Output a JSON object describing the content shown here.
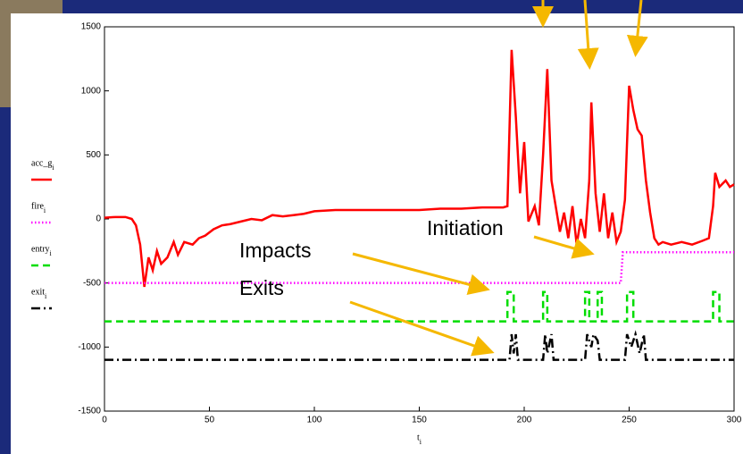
{
  "chart_data": {
    "type": "line",
    "xlabel": "t",
    "xlabel_sub": "i",
    "xlim": [
      0,
      300
    ],
    "xticks": [
      0,
      50,
      100,
      150,
      200,
      250,
      300
    ],
    "ylim": [
      -1500,
      1500
    ],
    "yticks": [
      -1500,
      -1000,
      -500,
      0,
      500,
      1000,
      1500
    ],
    "annotations": [
      "Impacts",
      "Exits",
      "Initiation"
    ],
    "series": [
      {
        "name": "acc_g",
        "name_sub": "i",
        "color": "#ff0000",
        "style": "solid",
        "x": [
          0,
          5,
          10,
          13,
          15,
          17,
          19,
          21,
          23,
          25,
          27,
          30,
          33,
          35,
          38,
          42,
          45,
          48,
          52,
          56,
          60,
          65,
          70,
          75,
          80,
          85,
          90,
          95,
          100,
          110,
          120,
          130,
          140,
          150,
          160,
          170,
          180,
          190,
          192,
          194,
          196,
          198,
          200,
          202,
          205,
          207,
          209,
          211,
          213,
          215,
          217,
          219,
          221,
          223,
          225,
          227,
          229,
          231,
          232,
          234,
          236,
          238,
          240,
          242,
          244,
          246,
          248,
          250,
          252,
          254,
          256,
          258,
          260,
          262,
          264,
          266,
          270,
          275,
          280,
          285,
          288,
          290,
          291,
          293,
          296,
          298,
          300
        ],
        "values": [
          10,
          15,
          15,
          0,
          -50,
          -200,
          -530,
          -300,
          -400,
          -250,
          -350,
          -300,
          -180,
          -280,
          -180,
          -200,
          -150,
          -130,
          -80,
          -50,
          -40,
          -20,
          0,
          -10,
          30,
          20,
          30,
          40,
          60,
          70,
          70,
          70,
          70,
          70,
          80,
          80,
          90,
          90,
          100,
          1320,
          800,
          200,
          600,
          -20,
          100,
          -50,
          500,
          1170,
          300,
          100,
          -100,
          50,
          -150,
          100,
          -200,
          0,
          -150,
          300,
          910,
          200,
          -100,
          200,
          -150,
          50,
          -180,
          -100,
          150,
          1040,
          850,
          700,
          650,
          300,
          50,
          -150,
          -200,
          -180,
          -200,
          -180,
          -200,
          -170,
          -150,
          100,
          360,
          250,
          300,
          250,
          270
        ]
      },
      {
        "name": "fire",
        "name_sub": "i",
        "color": "#ff00ff",
        "style": "dotted",
        "x": [
          0,
          246,
          247,
          300
        ],
        "values": [
          -500,
          -500,
          -260,
          -260
        ]
      },
      {
        "name": "entry",
        "name_sub": "i",
        "color": "#00dd00",
        "style": "dashed",
        "x": [
          0,
          192,
          192,
          195,
          195,
          209,
          209,
          211,
          211,
          229,
          229,
          231,
          231,
          235,
          235,
          237,
          237,
          249,
          249,
          252,
          252,
          290,
          290,
          293,
          293,
          300
        ],
        "values": [
          -800,
          -800,
          -570,
          -570,
          -800,
          -800,
          -570,
          -570,
          -800,
          -800,
          -570,
          -570,
          -800,
          -800,
          -570,
          -570,
          -800,
          -800,
          -570,
          -570,
          -800,
          -800,
          -570,
          -570,
          -800,
          -800
        ]
      },
      {
        "name": "exit",
        "name_sub": "i",
        "color": "#000000",
        "style": "dashdot",
        "x": [
          0,
          193,
          194,
          195,
          196,
          197,
          209,
          210,
          211,
          213,
          214,
          229,
          230,
          232,
          233,
          235,
          236,
          248,
          249,
          251,
          253,
          255,
          257,
          258,
          300
        ],
        "values": [
          -1100,
          -1100,
          -900,
          -1050,
          -900,
          -1100,
          -1100,
          -900,
          -1050,
          -900,
          -1100,
          -1100,
          -900,
          -1000,
          -900,
          -950,
          -1100,
          -1100,
          -900,
          -1000,
          -900,
          -1050,
          -900,
          -1100,
          -1100
        ]
      }
    ]
  }
}
